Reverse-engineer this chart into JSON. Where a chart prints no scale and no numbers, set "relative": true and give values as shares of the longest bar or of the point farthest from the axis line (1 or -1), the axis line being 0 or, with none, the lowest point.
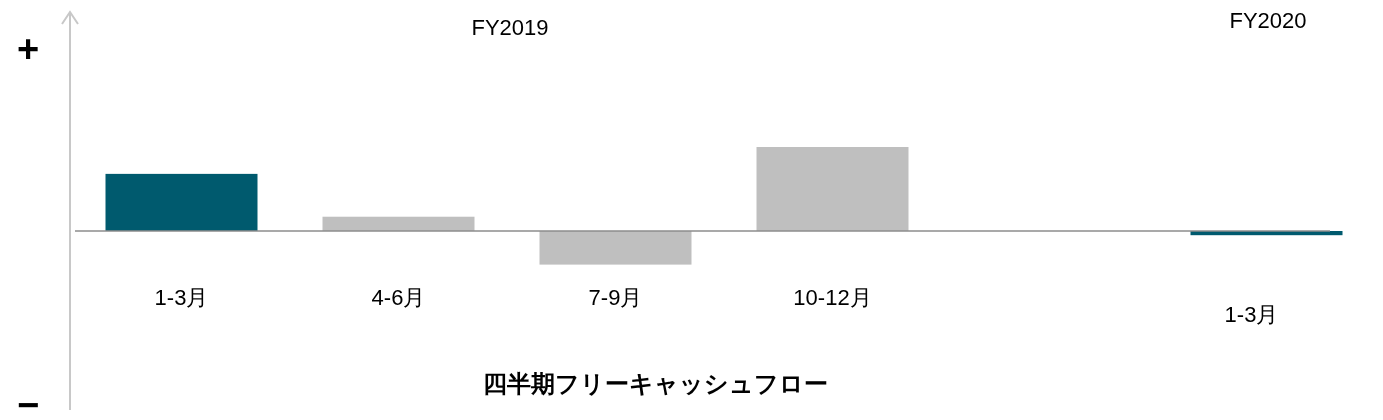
{
  "chart_data": {
    "type": "bar",
    "relative": true,
    "categories": [
      "1-3月",
      "4-6月",
      "7-9月",
      "10-12月",
      null,
      "1-3月"
    ],
    "values": [
      0.68,
      0.17,
      -0.4,
      1,
      null,
      -0.05
    ],
    "colors": [
      "#005a6e",
      "#bfbfbf",
      "#bfbfbf",
      "#bfbfbf",
      null,
      "#005a6e"
    ],
    "xlabel": "四半期フリーキャッシュフロー",
    "annotations": [
      "FY2019",
      "FY2020",
      "+",
      "−"
    ],
    "grid": false
  }
}
